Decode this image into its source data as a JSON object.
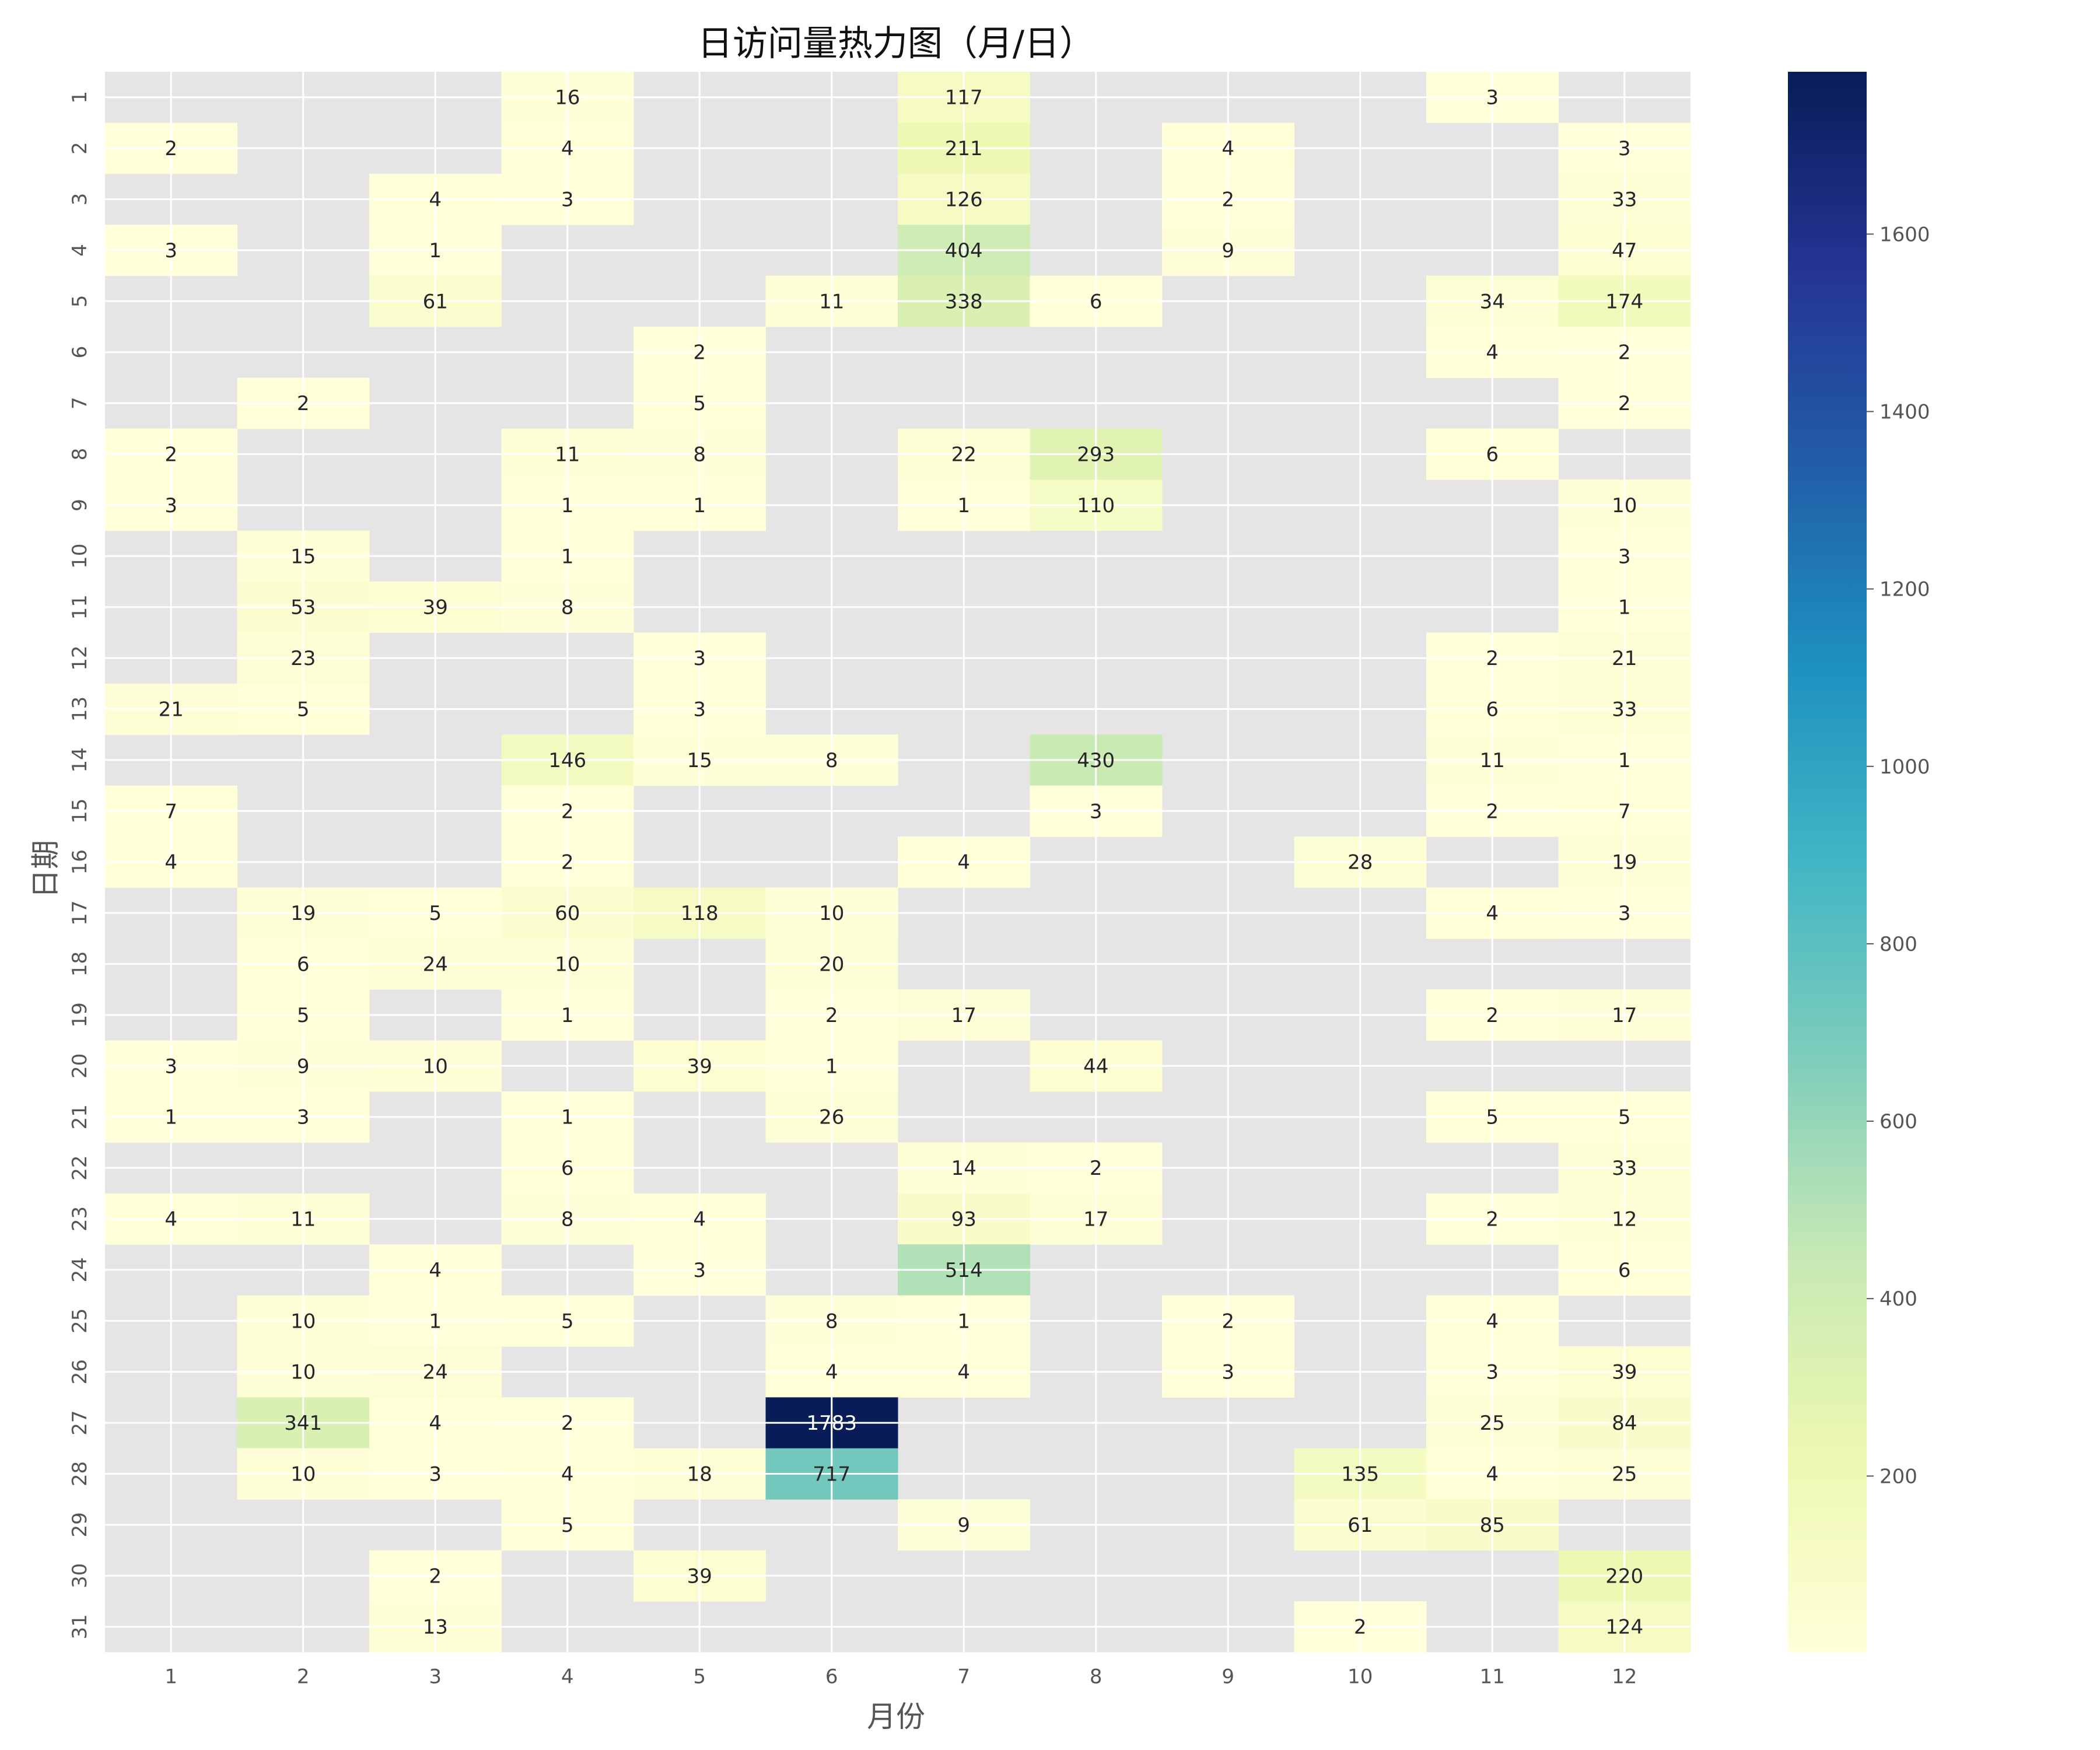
{
  "chart_data": {
    "type": "heatmap",
    "title": "日访问量热力图（月/日）",
    "xlabel": "月份",
    "ylabel": "日期",
    "x_categories": [
      "1",
      "2",
      "3",
      "4",
      "5",
      "6",
      "7",
      "8",
      "9",
      "10",
      "11",
      "12"
    ],
    "y_categories": [
      "1",
      "2",
      "3",
      "4",
      "5",
      "6",
      "7",
      "8",
      "9",
      "10",
      "11",
      "12",
      "13",
      "14",
      "15",
      "16",
      "17",
      "18",
      "19",
      "20",
      "21",
      "22",
      "23",
      "24",
      "25",
      "26",
      "27",
      "28",
      "29",
      "30",
      "31"
    ],
    "values": [
      [
        null,
        null,
        null,
        16,
        null,
        null,
        117,
        null,
        null,
        null,
        3,
        null
      ],
      [
        2,
        null,
        null,
        4,
        null,
        null,
        211,
        null,
        4,
        null,
        null,
        3
      ],
      [
        null,
        null,
        4,
        3,
        null,
        null,
        126,
        null,
        2,
        null,
        null,
        33
      ],
      [
        3,
        null,
        1,
        null,
        null,
        null,
        404,
        null,
        9,
        null,
        null,
        47
      ],
      [
        null,
        null,
        61,
        null,
        null,
        11,
        338,
        6,
        null,
        null,
        34,
        174
      ],
      [
        null,
        null,
        null,
        null,
        2,
        null,
        null,
        null,
        null,
        null,
        4,
        2
      ],
      [
        null,
        2,
        null,
        null,
        5,
        null,
        null,
        null,
        null,
        null,
        null,
        2
      ],
      [
        2,
        null,
        null,
        11,
        8,
        null,
        22,
        293,
        null,
        null,
        6,
        null
      ],
      [
        3,
        null,
        null,
        1,
        1,
        null,
        1,
        110,
        null,
        null,
        null,
        10
      ],
      [
        null,
        15,
        null,
        1,
        null,
        null,
        null,
        null,
        null,
        null,
        null,
        3
      ],
      [
        null,
        53,
        39,
        8,
        null,
        null,
        null,
        null,
        null,
        null,
        null,
        1
      ],
      [
        null,
        23,
        null,
        null,
        3,
        null,
        null,
        null,
        null,
        null,
        2,
        21
      ],
      [
        21,
        5,
        null,
        null,
        3,
        null,
        null,
        null,
        null,
        null,
        6,
        33
      ],
      [
        null,
        null,
        null,
        146,
        15,
        8,
        null,
        430,
        null,
        null,
        11,
        1
      ],
      [
        7,
        null,
        null,
        2,
        null,
        null,
        null,
        3,
        null,
        null,
        2,
        7
      ],
      [
        4,
        null,
        null,
        2,
        null,
        null,
        4,
        null,
        null,
        28,
        null,
        19
      ],
      [
        null,
        19,
        5,
        60,
        118,
        10,
        null,
        null,
        null,
        null,
        4,
        3
      ],
      [
        null,
        6,
        24,
        10,
        null,
        20,
        null,
        null,
        null,
        null,
        null,
        null
      ],
      [
        null,
        5,
        null,
        1,
        null,
        2,
        17,
        null,
        null,
        null,
        2,
        17
      ],
      [
        3,
        9,
        10,
        null,
        39,
        1,
        null,
        44,
        null,
        null,
        null,
        null
      ],
      [
        1,
        3,
        null,
        1,
        null,
        26,
        null,
        null,
        null,
        null,
        5,
        5
      ],
      [
        null,
        null,
        null,
        6,
        null,
        null,
        14,
        2,
        null,
        null,
        null,
        33
      ],
      [
        4,
        11,
        null,
        8,
        4,
        null,
        93,
        17,
        null,
        null,
        2,
        12
      ],
      [
        null,
        null,
        4,
        null,
        3,
        null,
        514,
        null,
        null,
        null,
        null,
        6
      ],
      [
        null,
        10,
        1,
        5,
        null,
        8,
        1,
        null,
        2,
        null,
        4,
        null
      ],
      [
        null,
        10,
        24,
        null,
        null,
        4,
        4,
        null,
        3,
        null,
        3,
        39
      ],
      [
        null,
        341,
        4,
        2,
        null,
        1783,
        null,
        null,
        null,
        null,
        25,
        84
      ],
      [
        null,
        10,
        3,
        4,
        18,
        717,
        null,
        null,
        null,
        135,
        4,
        25
      ],
      [
        null,
        null,
        null,
        5,
        null,
        null,
        9,
        null,
        null,
        61,
        85,
        null
      ],
      [
        null,
        null,
        2,
        null,
        39,
        null,
        null,
        null,
        null,
        null,
        null,
        220
      ],
      [
        null,
        null,
        13,
        null,
        null,
        null,
        null,
        null,
        null,
        2,
        null,
        124
      ]
    ],
    "colorbar": {
      "colormap": "YlGnBu",
      "range": [
        1,
        1783
      ],
      "ticks": [
        200,
        400,
        600,
        800,
        1000,
        1200,
        1400,
        1600
      ]
    },
    "missing_color": "#e5e5e5",
    "grid": true,
    "annotated": true
  }
}
